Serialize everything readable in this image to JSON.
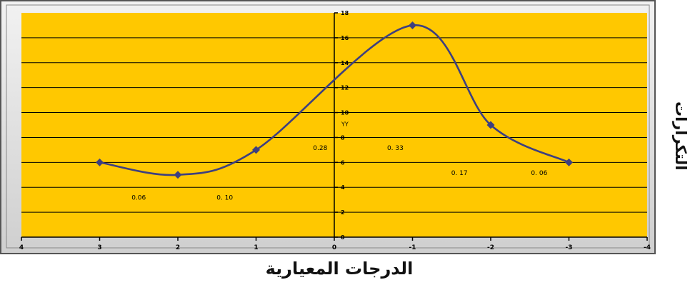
{
  "chart_data": {
    "type": "line",
    "x_tick_labels": [
      "4",
      "3",
      "2",
      "1",
      "0",
      "-1",
      "-2",
      "-3",
      "-4"
    ],
    "x_ticks": [
      4,
      3,
      2,
      1,
      0,
      -1,
      -2,
      -3,
      -4
    ],
    "y_tick_labels": [
      "0",
      "2",
      "4",
      "6",
      "8",
      "10",
      "12",
      "14",
      "16",
      "18"
    ],
    "y_ticks": [
      0,
      2,
      4,
      6,
      8,
      10,
      12,
      14,
      16,
      18
    ],
    "xlim": [
      4,
      -4
    ],
    "ylim": [
      0,
      18
    ],
    "y_axis_name": "YY",
    "series": [
      {
        "x": [
          3,
          2,
          1,
          -1,
          -2,
          -3
        ],
        "y": [
          6,
          5,
          7,
          17,
          9,
          6
        ],
        "color": "#3d3f80"
      }
    ],
    "annotations": [
      {
        "text": "0.06",
        "x": 2.5,
        "y": 3.0
      },
      {
        "text": "0. 10",
        "x": 1.4,
        "y": 3.0
      },
      {
        "text": "0.28",
        "x": 0.18,
        "y": 7.0
      },
      {
        "text": "0. 33",
        "x": -0.78,
        "y": 7.0
      },
      {
        "text": "0. 17",
        "x": -1.6,
        "y": 5.0
      },
      {
        "text": "0. 06",
        "x": -2.62,
        "y": 5.0
      }
    ],
    "xlabel": "الدرجات المعيارية",
    "ylabel": "التكرارات",
    "grid": true,
    "plot_color": "#ffc800"
  }
}
